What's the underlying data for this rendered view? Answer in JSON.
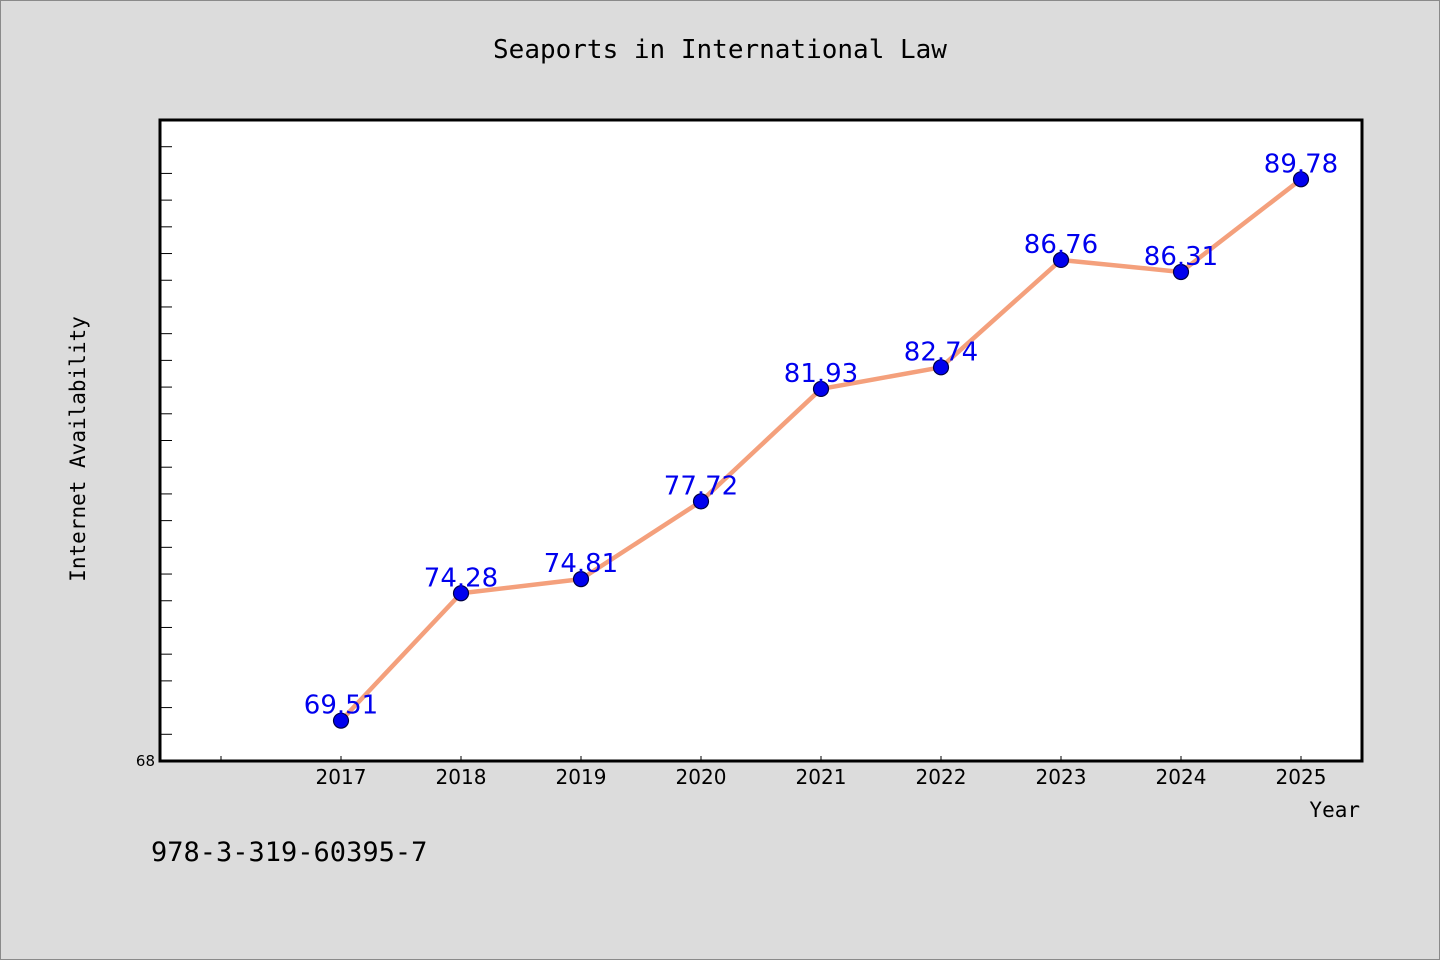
{
  "chart_data": {
    "type": "line",
    "title": "Seaports in International Law",
    "xlabel": "Year",
    "ylabel": "Internet Availability",
    "categories": [
      "2017",
      "2018",
      "2019",
      "2020",
      "2021",
      "2022",
      "2023",
      "2024",
      "2025"
    ],
    "series": [
      {
        "values": [
          69.51,
          74.28,
          74.81,
          77.72,
          81.93,
          82.74,
          86.76,
          86.31,
          89.78
        ],
        "labels": [
          "69.51",
          "74.28",
          "74.81",
          "77.72",
          "81.93",
          "82.74",
          "86.76",
          "86.31",
          "89.78"
        ]
      }
    ],
    "ylim": [
      68,
      92
    ],
    "y_tick_labels": [
      "68"
    ],
    "y_minor_step": 1,
    "grid": false,
    "legend": "none",
    "colors": {
      "line": "#f4a07c",
      "marker": "#0000ee",
      "marker_edge": "#000044",
      "data_label": "#0000ee",
      "plot_background": "#ffffff",
      "page_background": "#dcdcdc"
    }
  },
  "footer": {
    "code": "978-3-319-60395-7"
  }
}
